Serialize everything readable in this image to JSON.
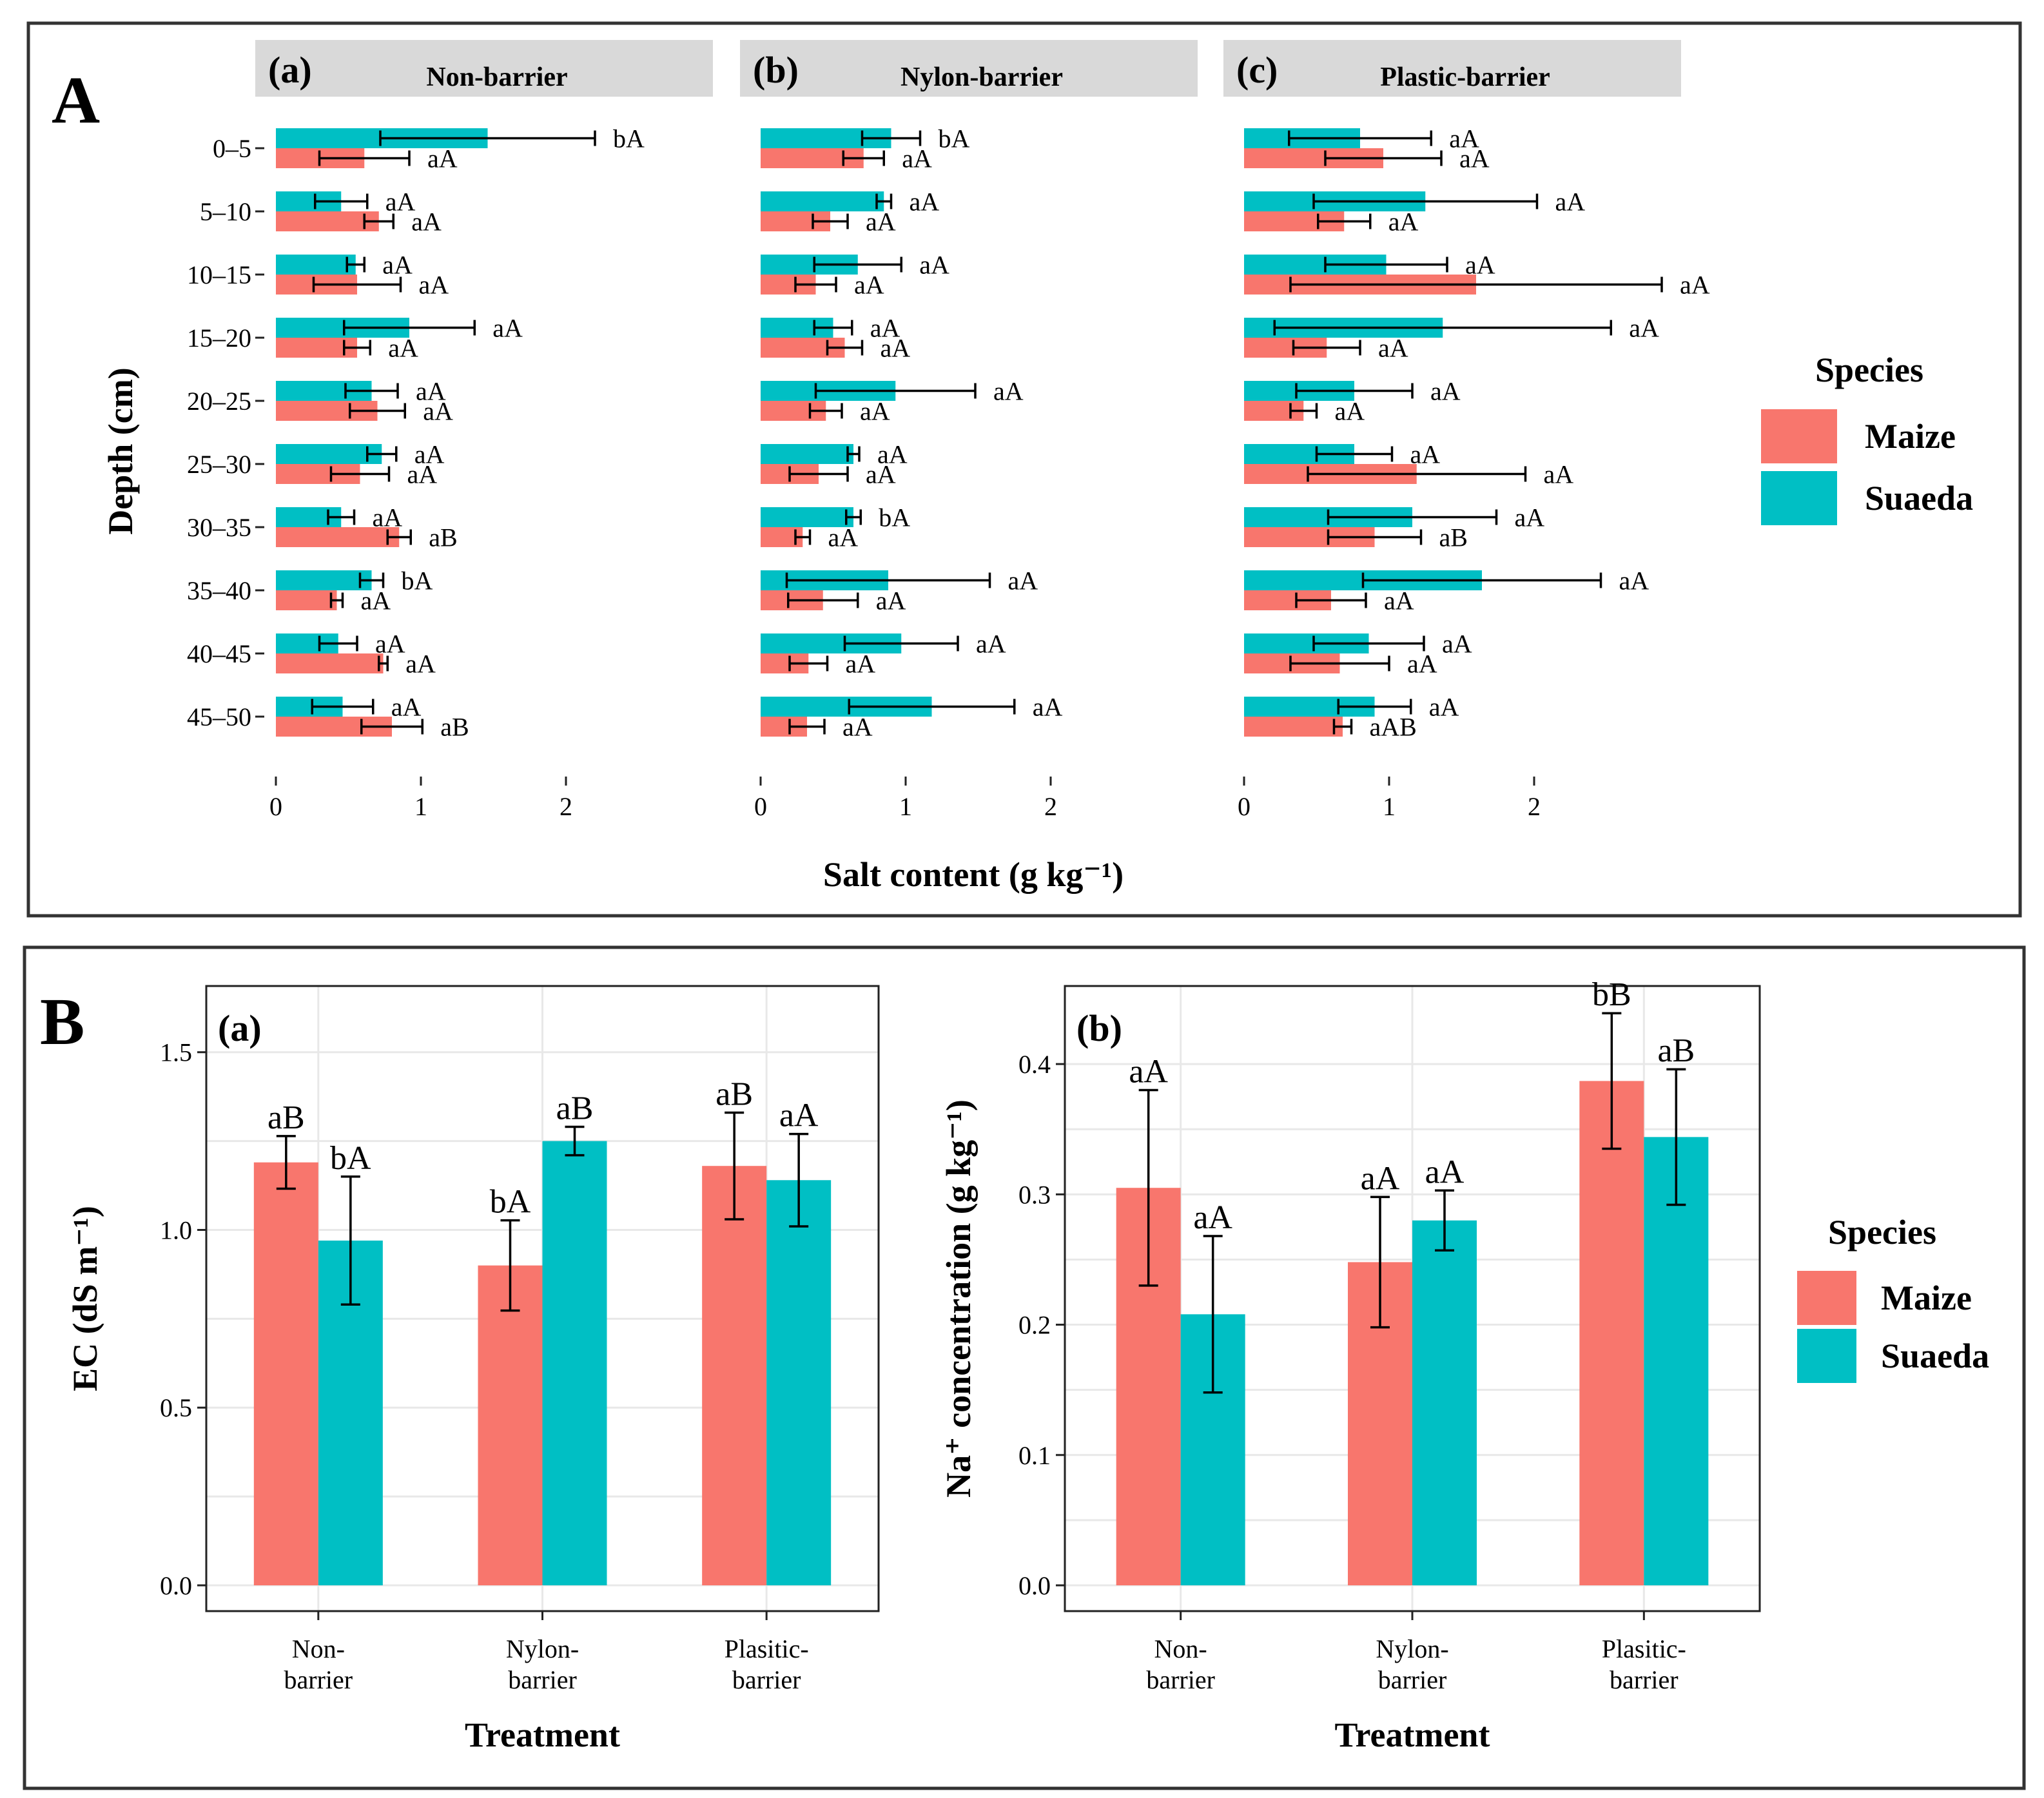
{
  "colors": {
    "maize": "#f8766d",
    "suaeda": "#00bfc4"
  },
  "panelA": {
    "label": "A"
  },
  "panelB": {
    "label": "B"
  },
  "chart_data": [
    {
      "id": "A",
      "type": "bar",
      "orientation": "horizontal",
      "ylabel": "Depth (cm)",
      "xlabel": "Salt content (g kg⁻¹)",
      "xlim": [
        0,
        2.5
      ],
      "xticks": [
        0,
        1,
        2
      ],
      "categories": [
        "0–5",
        "5–10",
        "10–15",
        "15–20",
        "20–25",
        "25–30",
        "30–35",
        "35–40",
        "40–45",
        "45–50"
      ],
      "legend": {
        "title": "Species",
        "items": [
          "Maize",
          "Suaeda"
        ],
        "position": "right"
      },
      "facets": [
        {
          "letter": "(a)",
          "title": "Non-barrier",
          "series": [
            {
              "name": "Maize",
              "values": [
                0.61,
                0.71,
                0.56,
                0.56,
                0.7,
                0.58,
                0.85,
                0.42,
                0.74,
                0.8
              ],
              "err": [
                0.31,
                0.1,
                0.3,
                0.09,
                0.19,
                0.2,
                0.08,
                0.04,
                0.03,
                0.21
              ],
              "sig": [
                "aA",
                "aA",
                "aA",
                "aA",
                "aA",
                "aA",
                "aB",
                "aA",
                "aA",
                "aB"
              ]
            },
            {
              "name": "Suaeda",
              "values": [
                1.46,
                0.45,
                0.55,
                0.92,
                0.66,
                0.73,
                0.45,
                0.66,
                0.43,
                0.46
              ],
              "err": [
                0.74,
                0.18,
                0.06,
                0.45,
                0.18,
                0.1,
                0.09,
                0.08,
                0.13,
                0.21
              ],
              "sig": [
                "bA",
                "aA",
                "aA",
                "aA",
                "aA",
                "aA",
                "aA",
                "bA",
                "aA",
                "aA"
              ]
            }
          ]
        },
        {
          "letter": "(b)",
          "title": "Nylon-barrier",
          "series": [
            {
              "name": "Maize",
              "values": [
                0.71,
                0.48,
                0.38,
                0.58,
                0.45,
                0.4,
                0.29,
                0.43,
                0.33,
                0.32
              ],
              "err": [
                0.14,
                0.12,
                0.14,
                0.12,
                0.11,
                0.2,
                0.05,
                0.24,
                0.13,
                0.12
              ],
              "sig": [
                "aA",
                "aA",
                "aA",
                "aA",
                "aA",
                "aA",
                "aA",
                "aA",
                "aA",
                "aA"
              ]
            },
            {
              "name": "Suaeda",
              "values": [
                0.9,
                0.85,
                0.67,
                0.5,
                0.93,
                0.64,
                0.64,
                0.88,
                0.97,
                1.18
              ],
              "err": [
                0.2,
                0.05,
                0.3,
                0.13,
                0.55,
                0.04,
                0.05,
                0.7,
                0.39,
                0.57
              ],
              "sig": [
                "bA",
                "aA",
                "aA",
                "aA",
                "aA",
                "aA",
                "bA",
                "aA",
                "aA",
                "aA"
              ]
            }
          ]
        },
        {
          "letter": "(c)",
          "title": "Plastic-barrier",
          "series": [
            {
              "name": "Maize",
              "values": [
                0.96,
                0.69,
                1.6,
                0.57,
                0.41,
                1.19,
                0.9,
                0.6,
                0.66,
                0.68
              ],
              "err": [
                0.4,
                0.18,
                1.28,
                0.23,
                0.09,
                0.75,
                0.32,
                0.24,
                0.34,
                0.06
              ],
              "sig": [
                "aA",
                "aA",
                "aA",
                "aA",
                "aA",
                "aA",
                "aB",
                "aA",
                "aA",
                "aAB"
              ]
            },
            {
              "name": "Suaeda",
              "values": [
                0.8,
                1.25,
                0.98,
                1.37,
                0.76,
                0.76,
                1.16,
                1.64,
                0.86,
                0.9
              ],
              "err": [
                0.49,
                0.77,
                0.42,
                1.16,
                0.4,
                0.26,
                0.58,
                0.82,
                0.38,
                0.25
              ],
              "sig": [
                "aA",
                "aA",
                "aA",
                "aA",
                "aA",
                "aA",
                "aA",
                "aA",
                "aA",
                "aA"
              ]
            }
          ]
        }
      ]
    },
    {
      "id": "B-a",
      "type": "bar",
      "letter": "(a)",
      "xlabel": "Treatment",
      "ylabel": "EC (dS m⁻¹)",
      "ylim": [
        0,
        1.65
      ],
      "yticks": [
        "0.0",
        "0.5",
        "1.0",
        "1.5"
      ],
      "categories": [
        [
          "Non-",
          "barrier"
        ],
        [
          "Nylon-",
          "barrier"
        ],
        [
          "Plasitic-",
          "barrier"
        ]
      ],
      "series": [
        {
          "name": "Maize",
          "values": [
            1.19,
            0.9,
            1.18
          ],
          "err": [
            0.074,
            0.127,
            0.15
          ],
          "sig": [
            "aB",
            "bA",
            "aB"
          ]
        },
        {
          "name": "Suaeda",
          "values": [
            0.97,
            1.25,
            1.14
          ],
          "err": [
            0.18,
            0.04,
            0.13
          ],
          "sig": [
            "bA",
            "aB",
            "aA"
          ]
        }
      ],
      "legend": null
    },
    {
      "id": "B-b",
      "type": "bar",
      "letter": "(b)",
      "xlabel": "Treatment",
      "ylabel": "Na⁺ concentration (g kg⁻¹)",
      "ylim": [
        0,
        0.45
      ],
      "yticks": [
        "0.0",
        "0.1",
        "0.2",
        "0.3",
        "0.4"
      ],
      "categories": [
        [
          "Non-",
          "barrier"
        ],
        [
          "Nylon-",
          "barrier"
        ],
        [
          "Plasitic-",
          "barrier"
        ]
      ],
      "series": [
        {
          "name": "Maize",
          "values": [
            0.305,
            0.248,
            0.387
          ],
          "err": [
            0.075,
            0.05,
            0.052
          ],
          "sig": [
            "aA",
            "aA",
            "bB"
          ]
        },
        {
          "name": "Suaeda",
          "values": [
            0.208,
            0.28,
            0.344
          ],
          "err": [
            0.06,
            0.023,
            0.052
          ],
          "sig": [
            "aA",
            "aA",
            "aB"
          ]
        }
      ],
      "legend": {
        "title": "Species",
        "items": [
          "Maize",
          "Suaeda"
        ],
        "position": "right"
      }
    }
  ]
}
